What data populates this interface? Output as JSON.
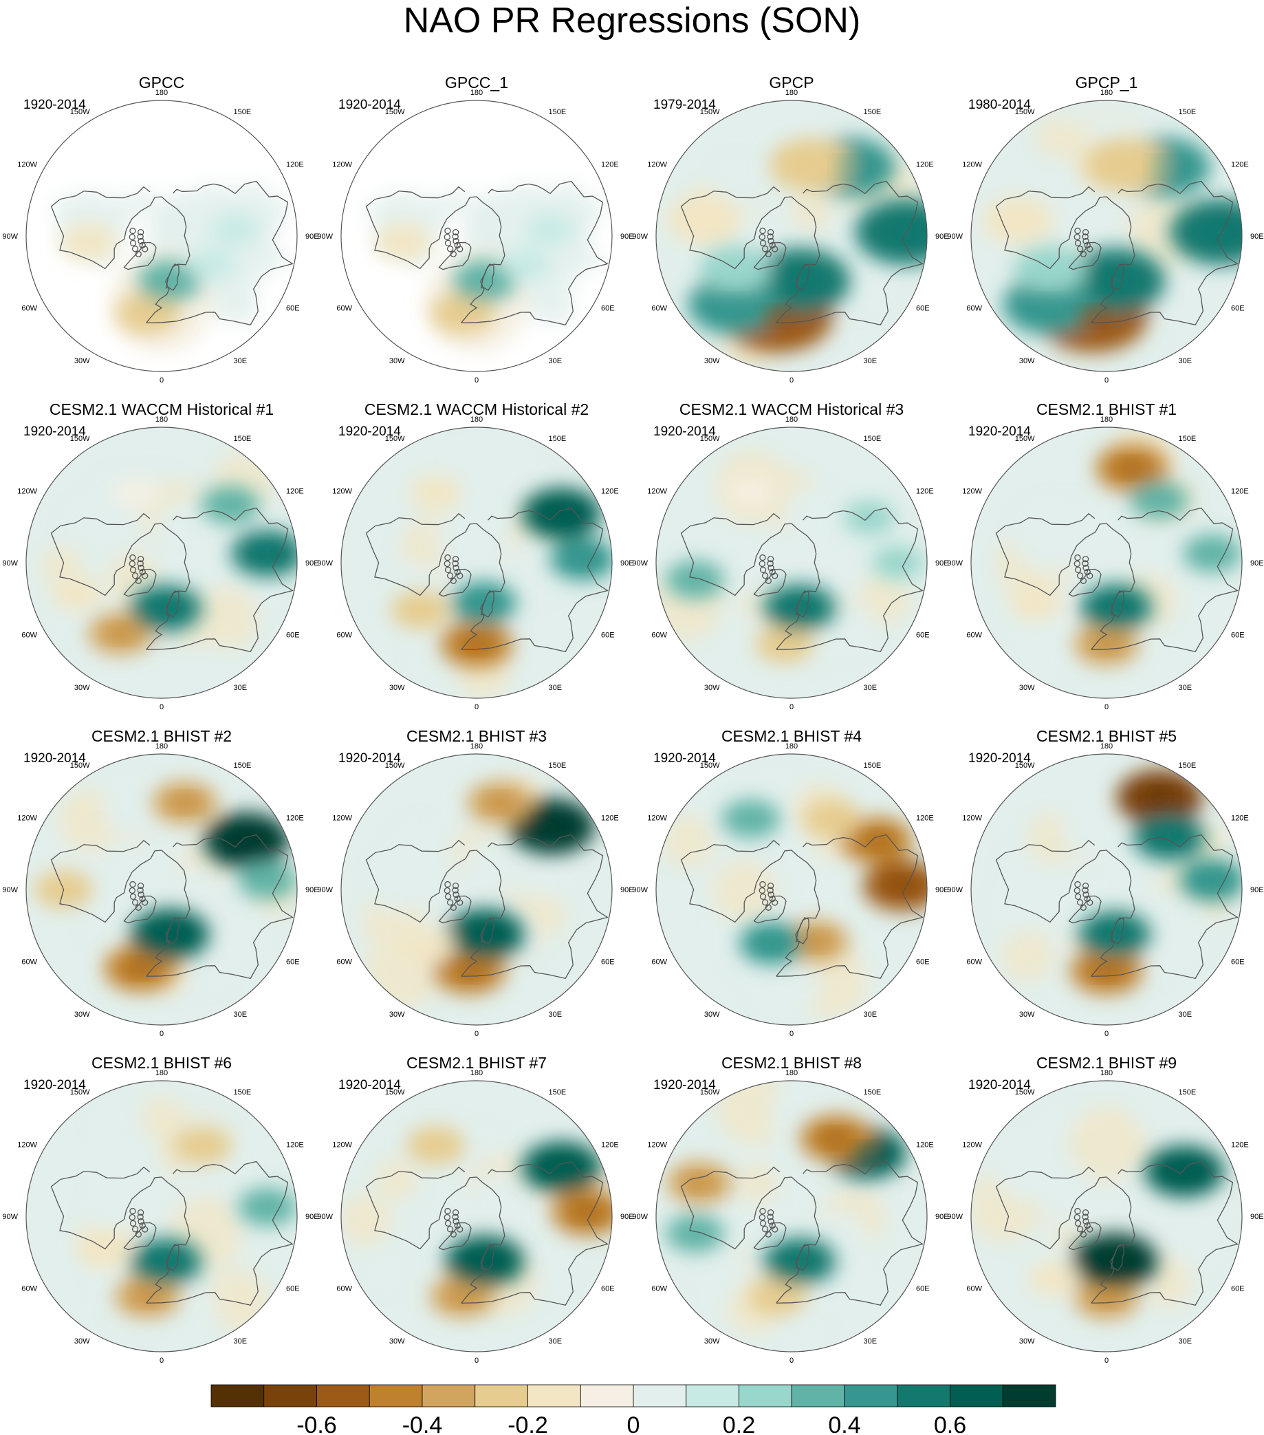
{
  "title": "NAO PR Regressions (SON)",
  "chart_data": {
    "type": "heatmap",
    "projection": "north polar stereographic",
    "variable": "PR regression onto NAO",
    "season": "SON",
    "longitude_labels": [
      "180",
      "150E",
      "120E",
      "90E",
      "60E",
      "30E",
      "0",
      "30W",
      "60W",
      "90W",
      "120W",
      "150W"
    ],
    "panels": [
      {
        "title": "GPCC",
        "period": "1920-2014",
        "land_only": true,
        "features": [
          {
            "lon": -10,
            "lat": 42,
            "value": -0.3
          },
          {
            "lon": 10,
            "lat": 62,
            "value": 0.3
          },
          {
            "lon": -85,
            "lat": 45,
            "value": -0.2
          },
          {
            "lon": 95,
            "lat": 45,
            "value": 0.1
          },
          {
            "lon": 60,
            "lat": 55,
            "value": 0.1
          }
        ]
      },
      {
        "title": "GPCC_1",
        "period": "1920-2014",
        "land_only": true,
        "features": [
          {
            "lon": -10,
            "lat": 42,
            "value": -0.3
          },
          {
            "lon": 10,
            "lat": 62,
            "value": 0.3
          },
          {
            "lon": -85,
            "lat": 45,
            "value": -0.2
          },
          {
            "lon": 95,
            "lat": 45,
            "value": 0.1
          },
          {
            "lon": 60,
            "lat": 55,
            "value": 0.1
          }
        ]
      },
      {
        "title": "GPCP",
        "period": "1979-2014",
        "land_only": false,
        "features": [
          {
            "lon": -10,
            "lat": 40,
            "value": -0.6
          },
          {
            "lon": 10,
            "lat": 62,
            "value": 0.5
          },
          {
            "lon": -40,
            "lat": 35,
            "value": 0.4
          },
          {
            "lon": 92,
            "lat": 20,
            "value": 0.5
          },
          {
            "lon": 140,
            "lat": 35,
            "value": 0.4
          },
          {
            "lon": 165,
            "lat": 45,
            "value": -0.3
          },
          {
            "lon": -60,
            "lat": 50,
            "value": 0.2
          },
          {
            "lon": -100,
            "lat": 35,
            "value": -0.2
          }
        ]
      },
      {
        "title": "GPCP_1",
        "period": "1980-2014",
        "land_only": false,
        "features": [
          {
            "lon": -10,
            "lat": 40,
            "value": -0.6
          },
          {
            "lon": 10,
            "lat": 62,
            "value": 0.5
          },
          {
            "lon": -40,
            "lat": 35,
            "value": 0.4
          },
          {
            "lon": 92,
            "lat": 20,
            "value": 0.5
          },
          {
            "lon": 140,
            "lat": 35,
            "value": 0.4
          },
          {
            "lon": 165,
            "lat": 45,
            "value": -0.3
          },
          {
            "lon": -60,
            "lat": 50,
            "value": 0.2
          },
          {
            "lon": -100,
            "lat": 35,
            "value": -0.2
          }
        ]
      },
      {
        "title": "CESM2.1 WACCM Historical #1",
        "period": "1920-2014",
        "land_only": false,
        "features": [
          {
            "lon": -30,
            "lat": 40,
            "value": -0.4
          },
          {
            "lon": 5,
            "lat": 62,
            "value": 0.5
          },
          {
            "lon": 95,
            "lat": 25,
            "value": 0.5
          },
          {
            "lon": 130,
            "lat": 35,
            "value": 0.3
          },
          {
            "lon": -70,
            "lat": 35,
            "value": -0.2
          },
          {
            "lon": -160,
            "lat": 45,
            "value": -0.1
          }
        ]
      },
      {
        "title": "CESM2.1 WACCM Historical #2",
        "period": "1920-2014",
        "land_only": false,
        "features": [
          {
            "lon": 0,
            "lat": 40,
            "value": -0.5
          },
          {
            "lon": 10,
            "lat": 65,
            "value": 0.4
          },
          {
            "lon": 120,
            "lat": 30,
            "value": 0.6
          },
          {
            "lon": 92,
            "lat": 25,
            "value": 0.4
          },
          {
            "lon": -50,
            "lat": 45,
            "value": -0.3
          },
          {
            "lon": -150,
            "lat": 40,
            "value": -0.2
          }
        ]
      },
      {
        "title": "CESM2.1 WACCM Historical #3",
        "period": "1920-2014",
        "land_only": false,
        "features": [
          {
            "lon": -5,
            "lat": 40,
            "value": -0.3
          },
          {
            "lon": 10,
            "lat": 62,
            "value": 0.5
          },
          {
            "lon": 120,
            "lat": 35,
            "value": 0.2
          },
          {
            "lon": -80,
            "lat": 30,
            "value": 0.3
          },
          {
            "lon": 90,
            "lat": 25,
            "value": 0.2
          },
          {
            "lon": -150,
            "lat": 40,
            "value": -0.1
          }
        ]
      },
      {
        "title": "CESM2.1 BHIST #1",
        "period": "1920-2014",
        "land_only": false,
        "features": [
          {
            "lon": 0,
            "lat": 40,
            "value": -0.4
          },
          {
            "lon": 12,
            "lat": 62,
            "value": 0.5
          },
          {
            "lon": 165,
            "lat": 30,
            "value": -0.5
          },
          {
            "lon": 140,
            "lat": 40,
            "value": 0.3
          },
          {
            "lon": 95,
            "lat": 25,
            "value": 0.3
          },
          {
            "lon": -60,
            "lat": 40,
            "value": -0.2
          }
        ]
      },
      {
        "title": "CESM2.1 BHIST #2",
        "period": "1920-2014",
        "land_only": false,
        "features": [
          {
            "lon": -15,
            "lat": 40,
            "value": -0.5
          },
          {
            "lon": 10,
            "lat": 62,
            "value": 0.6
          },
          {
            "lon": 120,
            "lat": 30,
            "value": 0.7
          },
          {
            "lon": 165,
            "lat": 35,
            "value": -0.4
          },
          {
            "lon": -90,
            "lat": 30,
            "value": -0.3
          },
          {
            "lon": 95,
            "lat": 25,
            "value": 0.3
          }
        ]
      },
      {
        "title": "CESM2.1 BHIST #3",
        "period": "1920-2014",
        "land_only": false,
        "features": [
          {
            "lon": -5,
            "lat": 40,
            "value": -0.5
          },
          {
            "lon": 10,
            "lat": 62,
            "value": 0.6
          },
          {
            "lon": 130,
            "lat": 30,
            "value": 0.7
          },
          {
            "lon": 165,
            "lat": 35,
            "value": -0.4
          },
          {
            "lon": -40,
            "lat": 45,
            "value": -0.2
          }
        ]
      },
      {
        "title": "CESM2.1 BHIST #4",
        "period": "1920-2014",
        "land_only": false,
        "features": [
          {
            "lon": 25,
            "lat": 55,
            "value": -0.4
          },
          {
            "lon": 92,
            "lat": 22,
            "value": -0.6
          },
          {
            "lon": 120,
            "lat": 30,
            "value": -0.5
          },
          {
            "lon": -150,
            "lat": 40,
            "value": 0.3
          },
          {
            "lon": -20,
            "lat": 55,
            "value": 0.4
          },
          {
            "lon": 150,
            "lat": 40,
            "value": -0.3
          }
        ]
      },
      {
        "title": "CESM2.1 BHIST #5",
        "period": "1920-2014",
        "land_only": false,
        "features": [
          {
            "lon": 0,
            "lat": 40,
            "value": -0.5
          },
          {
            "lon": 10,
            "lat": 62,
            "value": 0.5
          },
          {
            "lon": 150,
            "lat": 25,
            "value": -0.7
          },
          {
            "lon": 130,
            "lat": 40,
            "value": 0.5
          },
          {
            "lon": 95,
            "lat": 25,
            "value": 0.4
          }
        ]
      },
      {
        "title": "CESM2.1 BHIST #6",
        "period": "1920-2014",
        "land_only": false,
        "features": [
          {
            "lon": -10,
            "lat": 40,
            "value": -0.4
          },
          {
            "lon": 5,
            "lat": 62,
            "value": 0.5
          },
          {
            "lon": -60,
            "lat": 50,
            "value": -0.2
          },
          {
            "lon": 150,
            "lat": 40,
            "value": -0.3
          },
          {
            "lon": 95,
            "lat": 25,
            "value": 0.3
          }
        ]
      },
      {
        "title": "CESM2.1 BHIST #7",
        "period": "1920-2014",
        "land_only": false,
        "features": [
          {
            "lon": -10,
            "lat": 40,
            "value": -0.4
          },
          {
            "lon": 10,
            "lat": 62,
            "value": 0.6
          },
          {
            "lon": 120,
            "lat": 30,
            "value": 0.6
          },
          {
            "lon": 92,
            "lat": 22,
            "value": -0.5
          },
          {
            "lon": -150,
            "lat": 40,
            "value": -0.3
          }
        ]
      },
      {
        "title": "CESM2.1 BHIST #8",
        "period": "1920-2014",
        "land_only": false,
        "features": [
          {
            "lon": -10,
            "lat": 40,
            "value": -0.3
          },
          {
            "lon": 10,
            "lat": 62,
            "value": 0.5
          },
          {
            "lon": 130,
            "lat": 30,
            "value": 0.6
          },
          {
            "lon": 150,
            "lat": 35,
            "value": -0.5
          },
          {
            "lon": -110,
            "lat": 30,
            "value": -0.4
          },
          {
            "lon": -80,
            "lat": 30,
            "value": 0.3
          }
        ]
      },
      {
        "title": "CESM2.1 BHIST #9",
        "period": "1920-2014",
        "land_only": false,
        "features": [
          {
            "lon": 0,
            "lat": 40,
            "value": -0.4
          },
          {
            "lon": 10,
            "lat": 62,
            "value": 0.7
          },
          {
            "lon": 120,
            "lat": 35,
            "value": 0.6
          },
          {
            "lon": -40,
            "lat": 40,
            "value": -0.2
          }
        ]
      }
    ],
    "colorbar": {
      "levels": [
        -0.7,
        -0.6,
        -0.5,
        -0.4,
        -0.3,
        -0.2,
        -0.1,
        0,
        0.1,
        0.2,
        0.3,
        0.4,
        0.5,
        0.6,
        0.7
      ],
      "colors": [
        "#543005",
        "#7a420b",
        "#9c5a16",
        "#bf812d",
        "#d2a55f",
        "#e6cc8f",
        "#f2e6c5",
        "#f5f0e3",
        "#e2efec",
        "#c7eae5",
        "#99d6cb",
        "#60b3a6",
        "#35978f",
        "#13796f",
        "#015e52",
        "#003c30"
      ],
      "tick_labels": [
        "-0.6",
        "-0.4",
        "-0.2",
        "0",
        "0.2",
        "0.4",
        "0.6"
      ],
      "tick_values": [
        -0.6,
        -0.4,
        -0.2,
        0,
        0.2,
        0.4,
        0.6
      ]
    }
  }
}
